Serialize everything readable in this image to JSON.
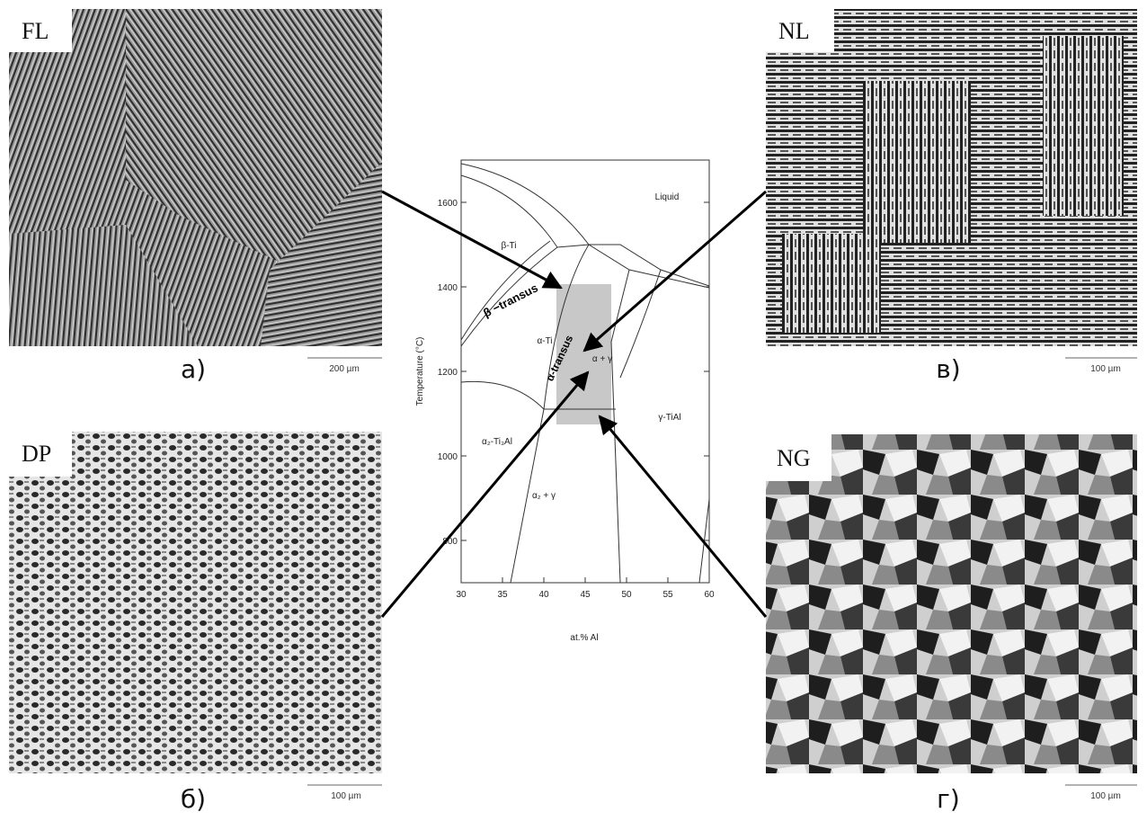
{
  "panels": [
    {
      "label": "FL",
      "caption": "а)",
      "scale": "200 µm"
    },
    {
      "label": "NL",
      "caption": "в)",
      "scale": "100 µm"
    },
    {
      "label": "DP",
      "caption": "б)",
      "scale": "100 µm"
    },
    {
      "label": "NG",
      "caption": "г)",
      "scale": "100 µm"
    }
  ],
  "diagram": {
    "xlabel": "at.% Al",
    "ylabel": "Temperature (°C)",
    "xlim": [
      30,
      60
    ],
    "ylim": [
      700,
      1700
    ],
    "xticks": [
      30,
      35,
      40,
      45,
      50,
      55,
      60
    ],
    "yticks": [
      800,
      1000,
      1200,
      1400,
      1600
    ],
    "regions": [
      "Liquid",
      "β-Ti",
      "β −transus",
      "α-Ti",
      "α-transus",
      "α + γ",
      "α₂-Ti₃Al",
      "α₂ + γ",
      "γ-TiAl"
    ]
  }
}
